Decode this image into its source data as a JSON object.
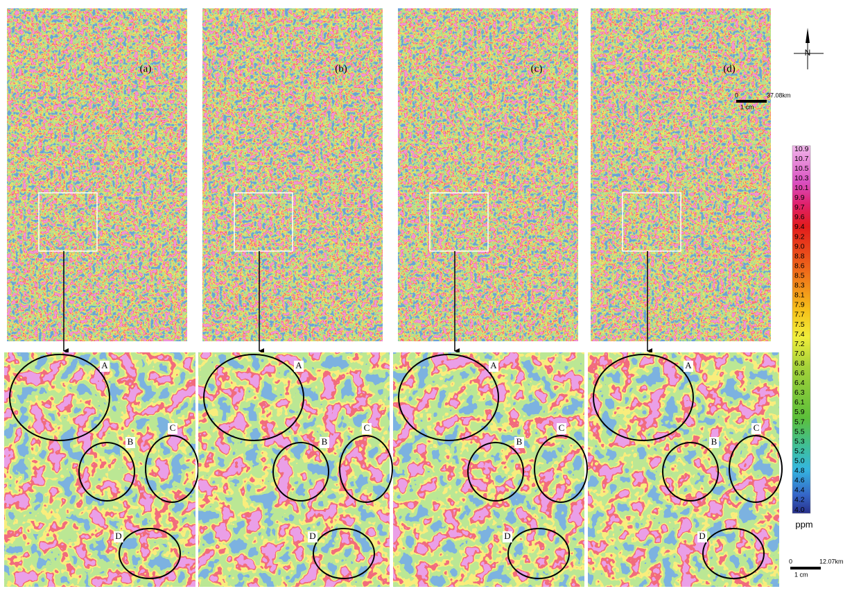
{
  "panels": [
    {
      "label": "(a)",
      "regions": [
        "A",
        "B",
        "C",
        "D"
      ]
    },
    {
      "label": "(b)",
      "regions": [
        "A",
        "B",
        "C",
        "D"
      ]
    },
    {
      "label": "(c)",
      "regions": [
        "A",
        "B",
        "C",
        "D"
      ]
    },
    {
      "label": "(d)",
      "regions": [
        "A",
        "B",
        "C",
        "D"
      ]
    }
  ],
  "north": "N",
  "map_scale": {
    "start": "0",
    "end": "37.08km",
    "unit": "1 cm"
  },
  "zoom_scale": {
    "start": "0",
    "end": "12.07km",
    "unit": "1 cm"
  },
  "legend": {
    "labels": [
      "10.9",
      "10.7",
      "10.5",
      "10.3",
      "10.1",
      "9.9",
      "9.7",
      "9.6",
      "9.4",
      "9.2",
      "9.0",
      "8.8",
      "8.6",
      "8.5",
      "8.3",
      "8.1",
      "7.9",
      "7.7",
      "7.5",
      "7.4",
      "7.2",
      "7.0",
      "6.8",
      "6.6",
      "6.4",
      "6.3",
      "6.1",
      "5.9",
      "5.7",
      "5.5",
      "5.3",
      "5.2",
      "5.0",
      "4.8",
      "4.6",
      "4.4",
      "4.2",
      "4.0"
    ],
    "unit": "ppm"
  }
}
